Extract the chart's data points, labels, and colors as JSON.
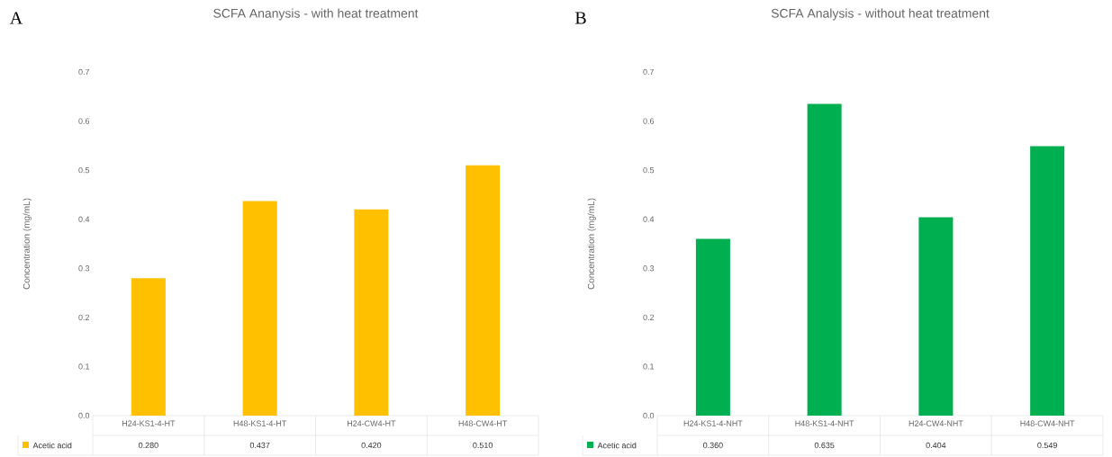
{
  "chart_data": [
    {
      "type": "bar",
      "title": "SCFA Ananysis - with heat treatment",
      "ylabel": "Concentration (mg/mL)",
      "annotations": [
        "A"
      ],
      "categories": [
        "H24-KS1-4-HT",
        "H48-KS1-4-HT",
        "H24-CW4-HT",
        "H48-CW4-HT"
      ],
      "series": [
        {
          "name": "Acetic acid",
          "color": "#ffc000",
          "values": [
            0.28,
            0.437,
            0.42,
            0.51
          ],
          "value_labels": [
            "0.280",
            "0.437",
            "0.420",
            "0.510"
          ]
        }
      ],
      "ylim": [
        0,
        0.7
      ],
      "yticks": [
        {
          "value": 0,
          "label": "0.0"
        },
        0.1,
        0.2,
        0.3,
        0.4,
        0.5,
        0.6,
        0.7
      ],
      "legend": "bottom"
    },
    {
      "type": "bar",
      "title": "SCFA Analysis - without heat treatment",
      "ylabel": "Concentration (mg/mL)",
      "annotations": [
        "B"
      ],
      "categories": [
        "H24-KS1-4-NHT",
        "H48-KS1-4-NHT",
        "H24-CW4-NHT",
        "H48-CW4-NHT"
      ],
      "series": [
        {
          "name": "Acetic acid",
          "color": "#00b050",
          "values": [
            0.36,
            0.635,
            0.404,
            0.549
          ],
          "value_labels": [
            "0.360",
            "0.635",
            "0.404",
            "0.549"
          ]
        }
      ],
      "ylim": [
        0,
        0.7
      ],
      "yticks": [
        {
          "value": 0,
          "label": "0.0"
        },
        0.1,
        0.2,
        0.3,
        0.4,
        0.5,
        0.6,
        0.7
      ],
      "legend": "bottom"
    }
  ]
}
